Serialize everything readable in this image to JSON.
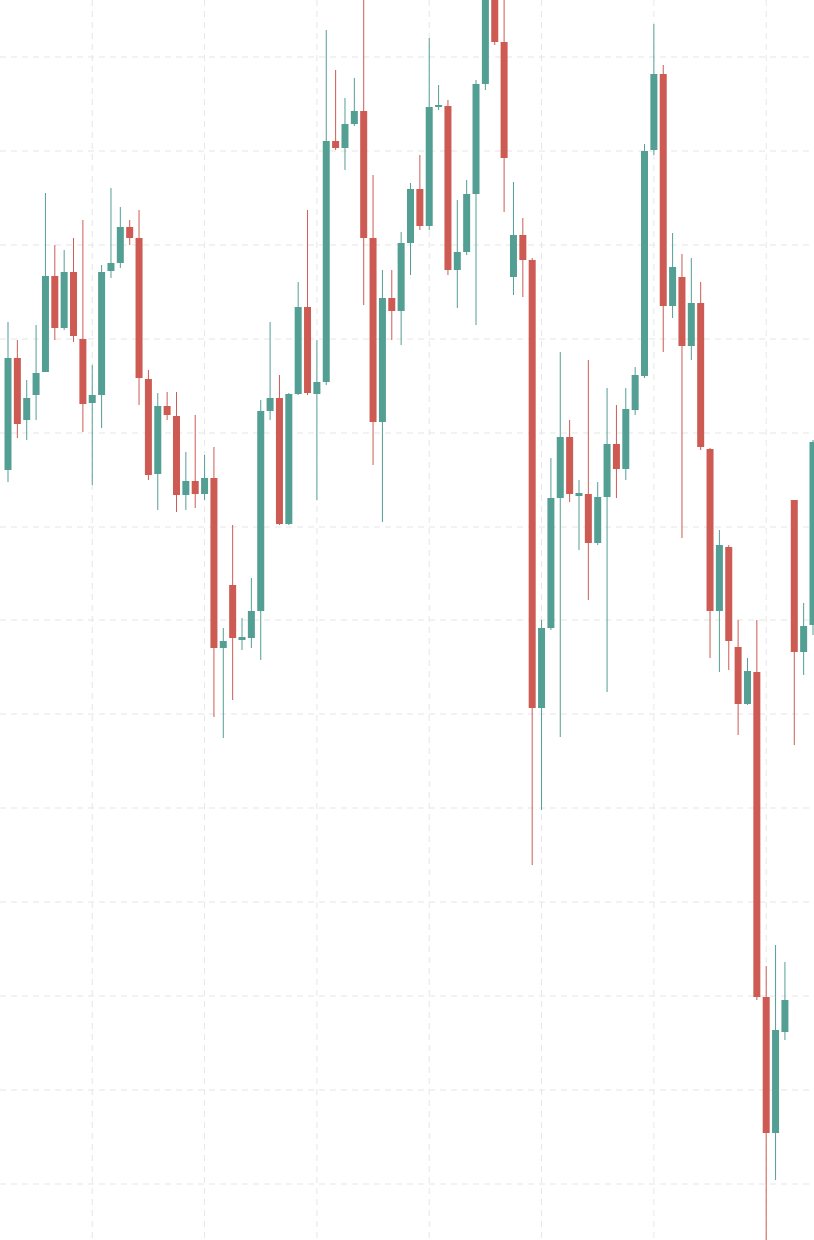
{
  "chart_data": {
    "type": "candlestick",
    "up_color": "#539f94",
    "down_color": "#cd5b53",
    "grid": true,
    "ylim": [
      0,
      124
    ],
    "yticks": [
      5.6,
      15.0,
      24.4,
      33.8,
      43.2,
      52.6,
      62.0,
      71.3,
      80.7,
      90.1,
      99.5,
      108.9,
      118.3
    ],
    "xlim": [
      0,
      86
    ],
    "xticks": [
      9,
      21,
      33,
      45,
      57,
      69,
      81
    ],
    "open": [
      77.0,
      88.2,
      82.0,
      84.5,
      86.8,
      96.4,
      91.2,
      96.8,
      90.1,
      83.7,
      84.5,
      96.9,
      97.7,
      101.3,
      100.2,
      86.1,
      76.6,
      83.4,
      82.4,
      74.5,
      75.9,
      74.6,
      76.2,
      59.2,
      65.5,
      60.0,
      60.2,
      62.9,
      82.9,
      84.2,
      71.6,
      84.6,
      93.3,
      84.6,
      85.8,
      109.9,
      109.2,
      111.6,
      112.9,
      100.2,
      81.8,
      94.2,
      92.9,
      99.7,
      105.1,
      101.4,
      113.3,
      113.4,
      97.0,
      98.8,
      104.6,
      115.6,
      125.0,
      119.8,
      96.3,
      100.5,
      98.0,
      53.2,
      61.2,
      74.2,
      80.3,
      74.4,
      74.6,
      69.7,
      74.3,
      79.6,
      77.1,
      83.0,
      86.4,
      109.0,
      116.6,
      93.4,
      96.3,
      89.4,
      93.7,
      79.1,
      62.9,
      69.3,
      59.3,
      53.6,
      56.8,
      24.3,
      10.7,
      20.8,
      74.0,
      58.8,
      61.5
    ],
    "high": [
      91.8,
      90.0,
      86.0,
      91.5,
      104.7,
      99.5,
      99.0,
      100.2,
      102.0,
      87.5,
      97.5,
      105.2,
      103.3,
      102.0,
      103.0,
      87.0,
      84.7,
      84.8,
      84.8,
      78.8,
      82.5,
      78.5,
      79.3,
      61.2,
      71.5,
      62.2,
      66.2,
      84.0,
      91.8,
      86.5,
      84.7,
      95.8,
      103.0,
      90.0,
      121.0,
      117.0,
      114.2,
      116.2,
      124.0,
      106.5,
      97.0,
      97.0,
      100.8,
      105.7,
      108.5,
      120.2,
      115.5,
      114.0,
      104.0,
      106.0,
      116.0,
      125.5,
      125.5,
      124.5,
      105.8,
      102.2,
      98.2,
      62.0,
      78.2,
      88.8,
      82.0,
      76.0,
      88.0,
      75.8,
      85.2,
      83.5,
      85.2,
      87.3,
      109.6,
      121.6,
      117.5,
      100.7,
      98.6,
      98.2,
      95.8,
      79.2,
      71.0,
      69.5,
      62.0,
      58.2,
      62.0,
      27.4,
      29.5,
      27.8,
      74.0,
      63.7,
      80.0
    ],
    "low": [
      75.8,
      80.2,
      80.0,
      82.0,
      86.8,
      90.0,
      91.0,
      89.8,
      80.8,
      75.5,
      81.2,
      96.2,
      97.2,
      99.5,
      83.5,
      76.0,
      73.0,
      82.0,
      72.8,
      73.0,
      73.2,
      74.0,
      52.3,
      50.2,
      54.0,
      59.0,
      59.2,
      58.0,
      82.0,
      71.5,
      71.5,
      84.5,
      84.5,
      74.0,
      85.5,
      109.0,
      107.0,
      111.4,
      93.5,
      77.5,
      71.8,
      90.0,
      89.5,
      96.5,
      101.0,
      101.0,
      113.0,
      96.5,
      93.2,
      98.5,
      91.5,
      115.0,
      119.5,
      102.8,
      94.5,
      94.3,
      37.5,
      43.0,
      61.0,
      50.3,
      73.8,
      69.0,
      64.0,
      69.5,
      54.8,
      74.2,
      76.0,
      82.5,
      86.2,
      108.5,
      88.8,
      92.2,
      70.2,
      88.0,
      79.0,
      58.2,
      56.8,
      57.0,
      50.5,
      53.5,
      24.0,
      0.0,
      6.0,
      20.0,
      49.5,
      56.5,
      60.5
    ],
    "close": [
      88.2,
      81.6,
      84.2,
      86.7,
      96.4,
      91.2,
      96.8,
      90.4,
      83.6,
      84.5,
      96.8,
      97.7,
      101.3,
      100.2,
      86.2,
      76.5,
      83.4,
      82.5,
      74.5,
      75.9,
      74.6,
      76.2,
      59.2,
      59.9,
      60.2,
      60.3,
      62.9,
      82.9,
      84.2,
      71.6,
      84.6,
      93.3,
      84.7,
      85.8,
      109.9,
      109.2,
      111.6,
      112.9,
      100.2,
      81.8,
      94.2,
      92.9,
      99.7,
      105.1,
      101.4,
      113.3,
      113.5,
      97.0,
      98.8,
      104.6,
      115.6,
      124.5,
      119.8,
      108.2,
      100.5,
      98.0,
      53.2,
      61.2,
      74.2,
      80.3,
      74.6,
      74.7,
      69.7,
      74.3,
      79.6,
      77.1,
      83.1,
      86.5,
      108.9,
      116.6,
      93.4,
      97.3,
      89.4,
      93.7,
      79.3,
      62.9,
      69.5,
      59.9,
      53.6,
      56.9,
      24.3,
      10.7,
      21.0,
      24.0,
      58.8,
      61.4,
      79.8
    ]
  }
}
